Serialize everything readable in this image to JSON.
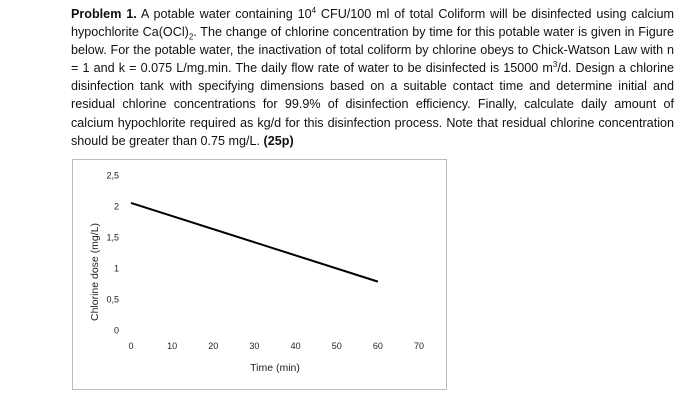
{
  "problem": {
    "label": "Problem 1.",
    "part1": " A potable water containing 10",
    "exp_coliform": "4",
    "part2": " CFU/100 ml of total Coliform will be disinfected using calcium hypochlorite Ca(OCl)",
    "sub_2": "2",
    "part3": ". The change of chlorine concentration by time for this potable water is given in Figure below. For the potable water, the inactivation of total coliform by chlorine obeys to Chick-Watson Law with n = 1 and  k = 0.075 L/mg.min. The daily flow rate of water to be disinfected is 15000 m",
    "exp_3": "3",
    "part4": "/d. Design a chlorine disinfection tank with specifying dimensions based on a suitable contact time and determine initial and residual chlorine concentrations for 99.9% of disinfection efficiency. Finally, calculate daily amount of calcium hypochlorite required as kg/d for this disinfection process. Note that residual chlorine concentration should be greater than 0.75 mg/L. ",
    "points": "(25p)"
  },
  "chart_data": {
    "type": "line",
    "title": "",
    "xlabel": "Time (min)",
    "ylabel": "Chlorine dose (mg/L)",
    "xlim": [
      0,
      70
    ],
    "ylim": [
      0,
      2.5
    ],
    "x_ticks": [
      "0",
      "10",
      "20",
      "30",
      "40",
      "50",
      "60",
      "70"
    ],
    "y_ticks": [
      "0",
      "0,5",
      "1",
      "1,5",
      "2",
      "2,5"
    ],
    "grid": false,
    "series": [
      {
        "x": [
          0,
          60
        ],
        "values": [
          2.05,
          0.78
        ],
        "color": "#000000"
      }
    ]
  }
}
